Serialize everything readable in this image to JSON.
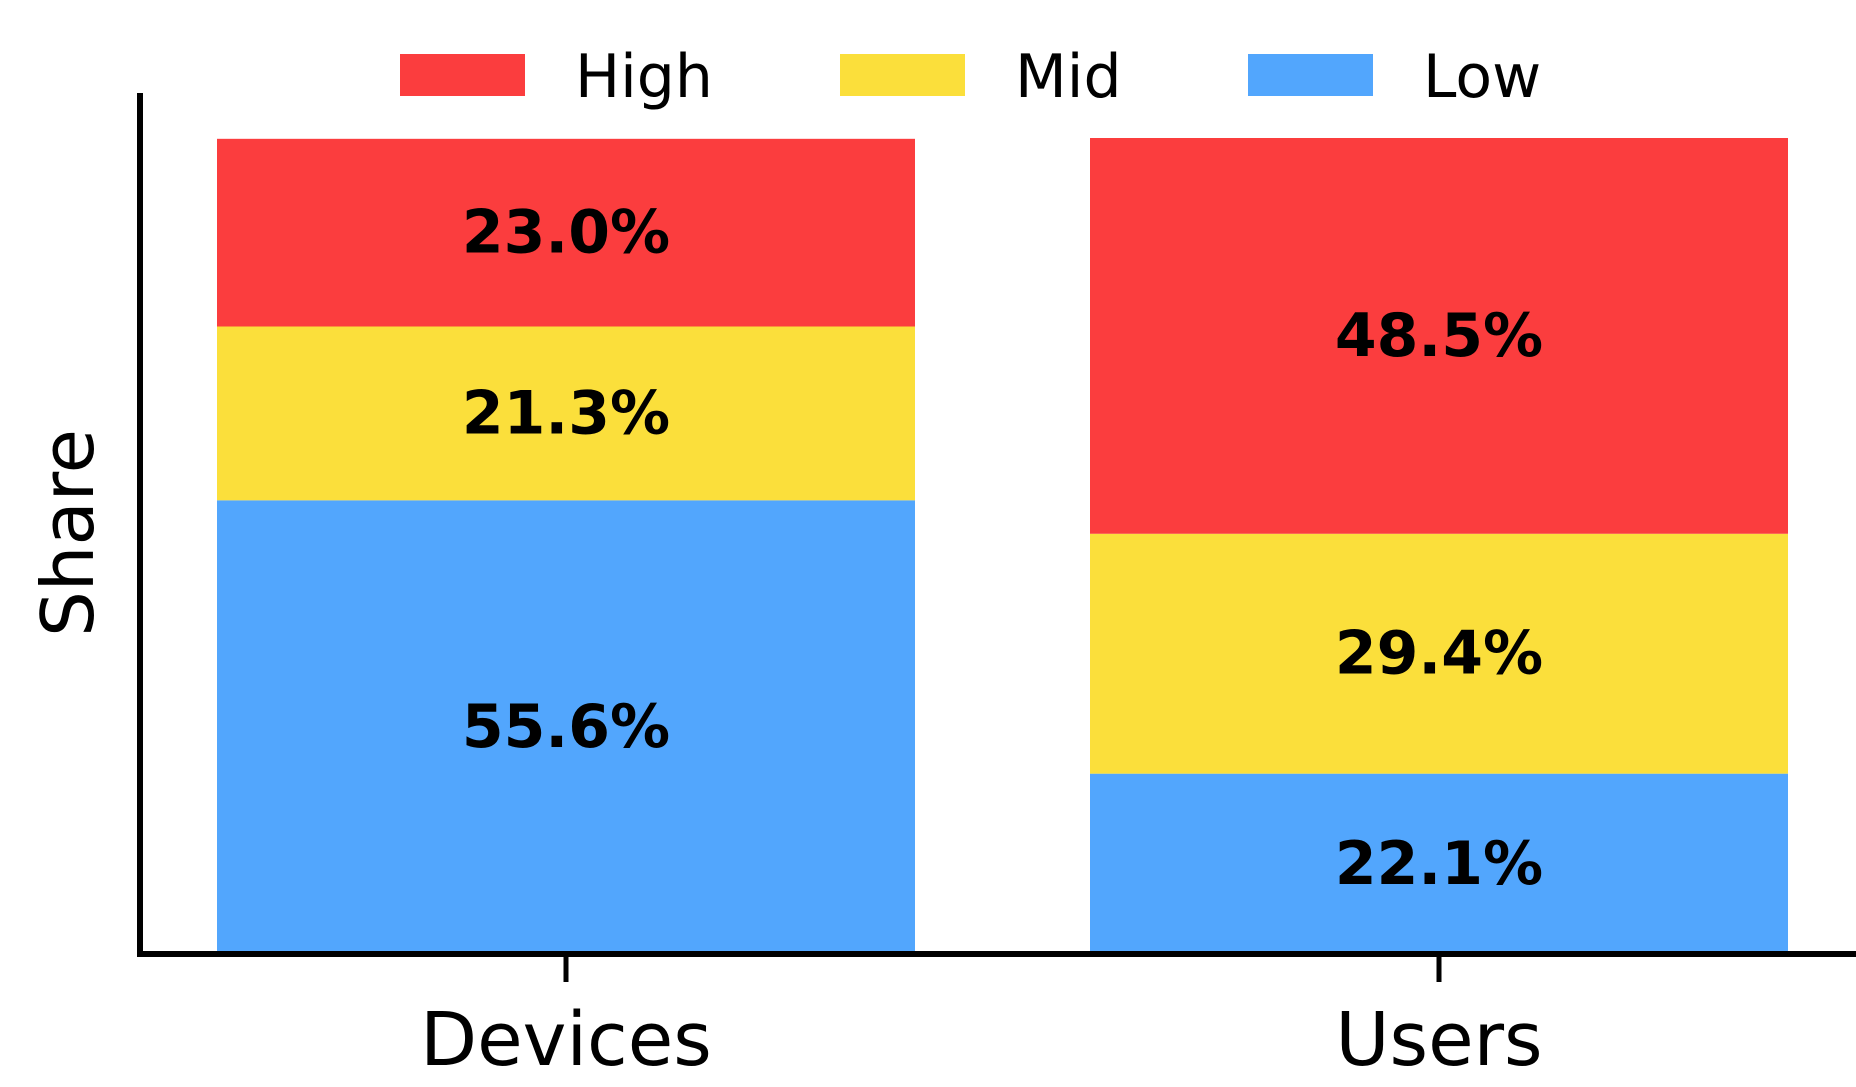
{
  "chart_data": {
    "type": "bar",
    "stacked": true,
    "categories": [
      "Devices",
      "Users"
    ],
    "series": [
      {
        "name": "Low",
        "values": [
          55.6,
          22.1
        ],
        "labels": [
          "55.6%",
          "22.1%"
        ],
        "color": "#52a6fd"
      },
      {
        "name": "Mid",
        "values": [
          21.3,
          29.4
        ],
        "labels": [
          "21.3%",
          "29.4%"
        ],
        "color": "#fbdf3b"
      },
      {
        "name": "High",
        "values": [
          23.0,
          48.5
        ],
        "labels": [
          "23.0%",
          "48.5%"
        ],
        "color": "#fb3d3e"
      }
    ],
    "legend_order": [
      "High",
      "Mid",
      "Low"
    ],
    "legend_position": "top",
    "ylabel": "Share",
    "xlabel": "",
    "title": "",
    "ylim": [
      0,
      100
    ],
    "grid": false
  }
}
